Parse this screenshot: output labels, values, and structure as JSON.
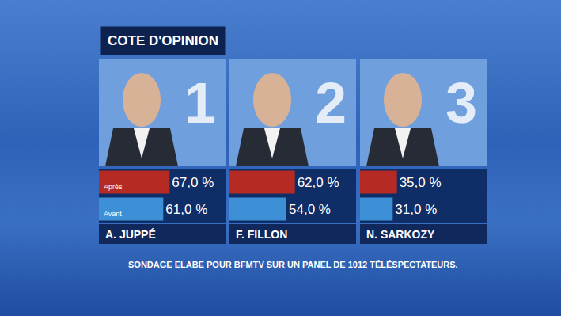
{
  "chart_data": {
    "type": "bar",
    "title": "COTE D'OPINION",
    "orientation": "horizontal",
    "categories": [
      "A. JUPPÉ",
      "F. FILLON",
      "N. SARKOZY"
    ],
    "ranks": [
      1,
      2,
      3
    ],
    "series": [
      {
        "name": "Après",
        "color": "#b52a22",
        "values": [
          67,
          62,
          35
        ],
        "value_labels": [
          "67,0 %",
          "62,0 %",
          "35,0 %"
        ]
      },
      {
        "name": "Avant",
        "color": "#3d8fd6",
        "values": [
          61,
          54,
          31
        ],
        "value_labels": [
          "61,0 %",
          "54,0 %",
          "31,0 %"
        ]
      }
    ],
    "xlim": [
      0,
      120
    ],
    "data_labels": true,
    "tick_labels": false,
    "grid": false,
    "annotations": [
      "SONDAGE ELABE POUR BFMTV SUR UN PANEL DE 1012 TÉLÉSPECTATEURS."
    ]
  }
}
